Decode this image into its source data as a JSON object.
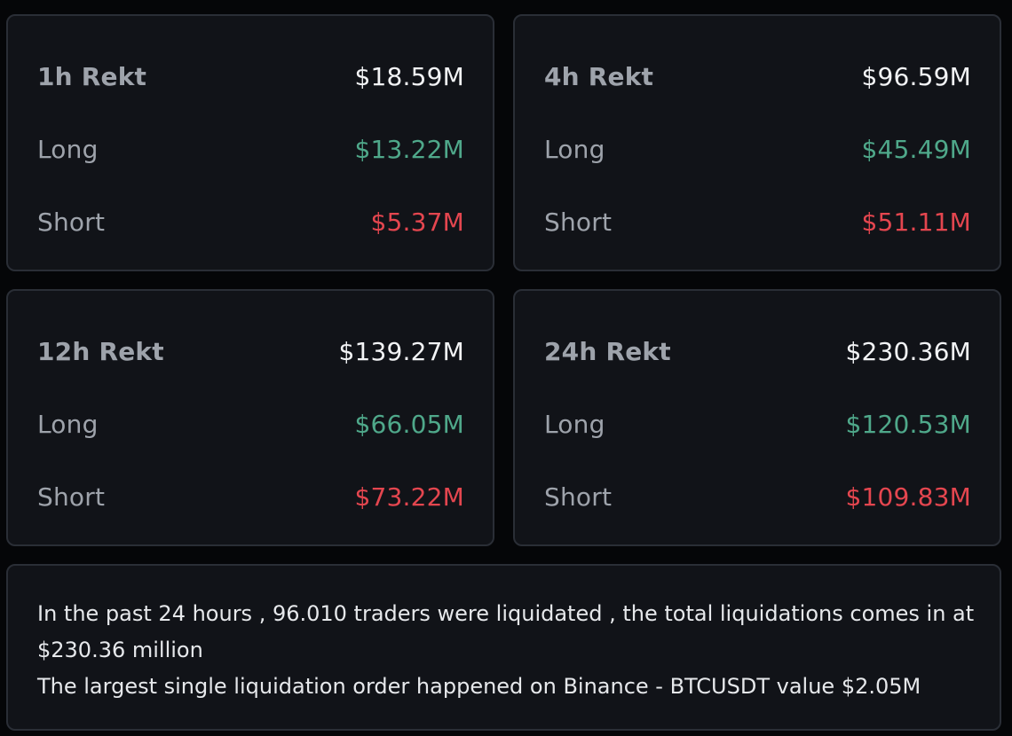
{
  "colors": {
    "background": "#050608",
    "card": "#111318",
    "border": "#2a2e36",
    "label": "#9ea3ab",
    "total": "#f2f3f5",
    "long": "#4fa88a",
    "short": "#e4464f"
  },
  "cards": [
    {
      "title": "1h Rekt",
      "total": "$18.59M",
      "long_label": "Long",
      "long_value": "$13.22M",
      "short_label": "Short",
      "short_value": "$5.37M"
    },
    {
      "title": "4h Rekt",
      "total": "$96.59M",
      "long_label": "Long",
      "long_value": "$45.49M",
      "short_label": "Short",
      "short_value": "$51.11M"
    },
    {
      "title": "12h Rekt",
      "total": "$139.27M",
      "long_label": "Long",
      "long_value": "$66.05M",
      "short_label": "Short",
      "short_value": "$73.22M"
    },
    {
      "title": "24h Rekt",
      "total": "$230.36M",
      "long_label": "Long",
      "long_value": "$120.53M",
      "short_label": "Short",
      "short_value": "$109.83M"
    }
  ],
  "summary": {
    "line1": "In the past 24 hours , 96.010 traders were liquidated , the total liquidations comes in at",
    "line2": "$230.36 million",
    "line3": "The largest single liquidation order happened on Binance - BTCUSDT value $2.05M"
  }
}
